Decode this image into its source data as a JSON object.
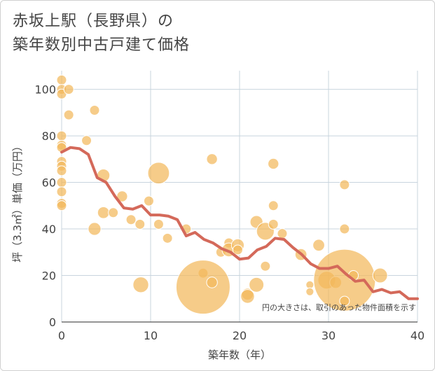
{
  "title_line1": "赤坂上駅（長野県）の",
  "title_line2": "築年数別中古戸建て価格",
  "chart_data": {
    "type": "scatter",
    "title": "赤坂上駅（長野県）の 築年数別中古戸建て価格",
    "xlabel": "築年数（年）",
    "ylabel": "坪（3.3㎡）単価（万円）",
    "xlim": [
      0,
      40
    ],
    "ylim": [
      0,
      108
    ],
    "xticks": [
      0,
      10,
      20,
      30,
      40
    ],
    "yticks": [
      0,
      20,
      40,
      60,
      80,
      100
    ],
    "grid": true,
    "annotation": "円の大きさは、取引のあった物件面積を示す",
    "colors": {
      "bubble": "#f2b95c",
      "line": "#d4695a",
      "grid": "#c8d4de"
    },
    "bubbles": [
      {
        "x": 0,
        "y": 104,
        "s": 1
      },
      {
        "x": 0,
        "y": 100,
        "s": 1
      },
      {
        "x": 0,
        "y": 98,
        "s": 1
      },
      {
        "x": 0.8,
        "y": 100,
        "s": 1
      },
      {
        "x": 0.8,
        "y": 89,
        "s": 1
      },
      {
        "x": 3.7,
        "y": 91,
        "s": 1
      },
      {
        "x": 0,
        "y": 80,
        "s": 1
      },
      {
        "x": 0,
        "y": 76,
        "s": 1
      },
      {
        "x": 0,
        "y": 75,
        "s": 1
      },
      {
        "x": 0,
        "y": 69,
        "s": 1
      },
      {
        "x": 0,
        "y": 67,
        "s": 1
      },
      {
        "x": 0,
        "y": 65,
        "s": 1
      },
      {
        "x": 0,
        "y": 60,
        "s": 1
      },
      {
        "x": 0,
        "y": 56,
        "s": 1
      },
      {
        "x": 0,
        "y": 51,
        "s": 1
      },
      {
        "x": 0,
        "y": 50,
        "s": 1
      },
      {
        "x": 2.8,
        "y": 78,
        "s": 1
      },
      {
        "x": 4.7,
        "y": 63,
        "s": 1.3
      },
      {
        "x": 3.7,
        "y": 40,
        "s": 1.3
      },
      {
        "x": 4.7,
        "y": 47,
        "s": 1.2
      },
      {
        "x": 5.8,
        "y": 47,
        "s": 1
      },
      {
        "x": 6.8,
        "y": 54,
        "s": 1.1
      },
      {
        "x": 7.8,
        "y": 44,
        "s": 1
      },
      {
        "x": 8.8,
        "y": 42,
        "s": 1
      },
      {
        "x": 9.8,
        "y": 52,
        "s": 1
      },
      {
        "x": 8.9,
        "y": 16,
        "s": 1.6
      },
      {
        "x": 10.9,
        "y": 64,
        "s": 2.2
      },
      {
        "x": 10.9,
        "y": 42,
        "s": 1
      },
      {
        "x": 11.9,
        "y": 36,
        "s": 1
      },
      {
        "x": 14,
        "y": 40,
        "s": 1
      },
      {
        "x": 15.9,
        "y": 21,
        "s": 1
      },
      {
        "x": 15.9,
        "y": 15,
        "s": 5.5
      },
      {
        "x": 16.9,
        "y": 70,
        "s": 1.1
      },
      {
        "x": 16.9,
        "y": 17,
        "s": 1.1
      },
      {
        "x": 17.9,
        "y": 30,
        "s": 1
      },
      {
        "x": 18.8,
        "y": 34,
        "s": 1
      },
      {
        "x": 18.8,
        "y": 31,
        "s": 1.4
      },
      {
        "x": 19.8,
        "y": 33,
        "s": 1.3
      },
      {
        "x": 19.8,
        "y": 31,
        "s": 1
      },
      {
        "x": 20.9,
        "y": 12,
        "s": 1.2
      },
      {
        "x": 20.9,
        "y": 11,
        "s": 1.4
      },
      {
        "x": 21.9,
        "y": 43,
        "s": 1.3
      },
      {
        "x": 21.9,
        "y": 16,
        "s": 1.5
      },
      {
        "x": 22.9,
        "y": 39,
        "s": 1.8
      },
      {
        "x": 22.9,
        "y": 24,
        "s": 1
      },
      {
        "x": 23.8,
        "y": 68,
        "s": 1.1
      },
      {
        "x": 23.8,
        "y": 50,
        "s": 1
      },
      {
        "x": 23.8,
        "y": 42,
        "s": 1
      },
      {
        "x": 24.8,
        "y": 38,
        "s": 1
      },
      {
        "x": 26.9,
        "y": 29,
        "s": 1.2
      },
      {
        "x": 27.9,
        "y": 16,
        "s": 0.8
      },
      {
        "x": 27.9,
        "y": 13,
        "s": 0.8
      },
      {
        "x": 28.9,
        "y": 33,
        "s": 1.2
      },
      {
        "x": 29.8,
        "y": 18,
        "s": 1.8
      },
      {
        "x": 30.8,
        "y": 17,
        "s": 1.2
      },
      {
        "x": 31.8,
        "y": 18,
        "s": 6.3
      },
      {
        "x": 31.8,
        "y": 59,
        "s": 1
      },
      {
        "x": 31.8,
        "y": 40,
        "s": 1
      },
      {
        "x": 31.8,
        "y": 9,
        "s": 1
      },
      {
        "x": 32.8,
        "y": 20,
        "s": 1
      },
      {
        "x": 35.8,
        "y": 20,
        "s": 1.5
      }
    ],
    "trend_line": {
      "x": [
        0,
        1,
        2,
        3,
        4,
        5,
        6,
        7,
        8,
        9,
        10,
        11,
        12,
        13,
        14,
        15,
        16,
        17,
        18,
        19,
        20,
        21,
        22,
        23,
        24,
        25,
        26,
        27,
        28,
        29,
        30,
        31,
        32,
        33,
        34,
        35,
        36,
        37,
        38,
        39,
        40
      ],
      "y": [
        73,
        75,
        74.5,
        72,
        62,
        60,
        54,
        49,
        48.5,
        50,
        46,
        46,
        45.5,
        44,
        37,
        38.5,
        35.5,
        34,
        31.5,
        30,
        27,
        27.5,
        31,
        32.5,
        36,
        35.5,
        32,
        29,
        25,
        23,
        23,
        24,
        20.5,
        17.5,
        18,
        13,
        14,
        12.5,
        13,
        10,
        10
      ]
    }
  }
}
